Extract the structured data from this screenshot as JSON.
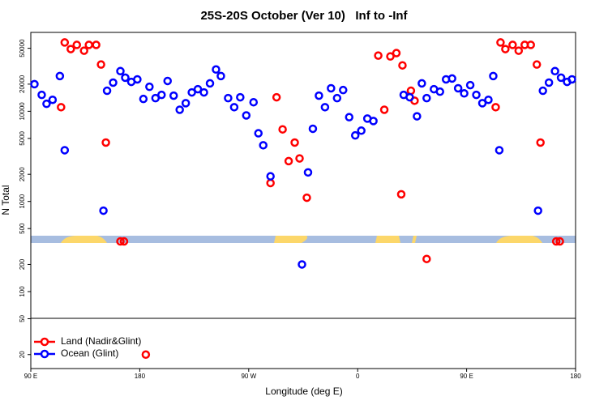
{
  "chart_data": {
    "type": "scatter",
    "title": "25S-20S October (Ver 10)   Inf to -Inf",
    "xlabel": "Longitude (deg E)",
    "ylabel": "N Total",
    "xlim": [
      90,
      540
    ],
    "xticks": [
      {
        "value": 90,
        "label": "90 E"
      },
      180,
      {
        "value": 270,
        "label": "90 W"
      },
      {
        "value": 360,
        "label": "0"
      },
      {
        "value": 450,
        "label": "90 E"
      },
      {
        "value": 540,
        "label": "180"
      }
    ],
    "ylim": [
      14,
      75000
    ],
    "log_y": true,
    "yticks": [
      20,
      50,
      100,
      200,
      500,
      1000,
      2000,
      5000,
      10000,
      20000,
      50000
    ],
    "legend": "lower left",
    "series": [
      {
        "name": "Land (Nadir&Glint)",
        "color": "#ff0000",
        "x": [
          115,
          118,
          123,
          128,
          134,
          138,
          144,
          148,
          152,
          164,
          167,
          185,
          288,
          293,
          298,
          303,
          308,
          312,
          318,
          377,
          382,
          387,
          392,
          397,
          396,
          404,
          407,
          417,
          474,
          478,
          482,
          488,
          493,
          498,
          503,
          508,
          511,
          524,
          527
        ],
        "values": [
          11100,
          58000,
          49000,
          54500,
          47000,
          54500,
          54500,
          33000,
          4500,
          360,
          360,
          20,
          1600,
          14300,
          6300,
          2800,
          4500,
          3000,
          1100,
          41500,
          10400,
          40600,
          44200,
          32300,
          1200,
          16900,
          13100,
          230,
          11100,
          58000,
          49000,
          54500,
          47000,
          54500,
          54500,
          33000,
          4500,
          360,
          360
        ]
      },
      {
        "name": "Ocean (Glint)",
        "color": "#0000ff",
        "x": [
          93,
          99,
          103,
          108,
          114,
          118,
          150,
          153,
          158,
          164,
          168,
          173,
          178,
          183,
          188,
          193,
          198,
          203,
          208,
          213,
          218,
          223,
          228,
          233,
          238,
          243,
          247,
          253,
          258,
          263,
          268,
          274,
          278,
          282,
          288,
          314,
          319,
          323,
          328,
          333,
          338,
          343,
          348,
          353,
          358,
          363,
          368,
          373,
          398,
          403,
          409,
          413,
          417,
          423,
          428,
          433,
          438,
          443,
          448,
          453,
          458,
          463,
          468,
          472,
          477,
          509,
          513,
          518,
          523,
          528,
          533,
          537
        ],
        "values": [
          20000,
          15200,
          12100,
          13400,
          24600,
          3700,
          790,
          16900,
          20800,
          27900,
          23600,
          21200,
          22600,
          13700,
          18700,
          14000,
          15200,
          21700,
          14900,
          10400,
          12300,
          16200,
          17600,
          16200,
          20400,
          29100,
          24600,
          14000,
          11100,
          14300,
          9000,
          12600,
          5700,
          4200,
          1900,
          200,
          2100,
          6400,
          14900,
          11100,
          18000,
          14000,
          17200,
          8600,
          5400,
          6100,
          8300,
          7800,
          15200,
          14300,
          8800,
          20400,
          14000,
          17600,
          16500,
          22600,
          23100,
          18000,
          15800,
          19500,
          15200,
          12300,
          13400,
          24600,
          3700,
          790,
          16900,
          20800,
          27900,
          23600,
          21200,
          22600
        ]
      }
    ]
  }
}
